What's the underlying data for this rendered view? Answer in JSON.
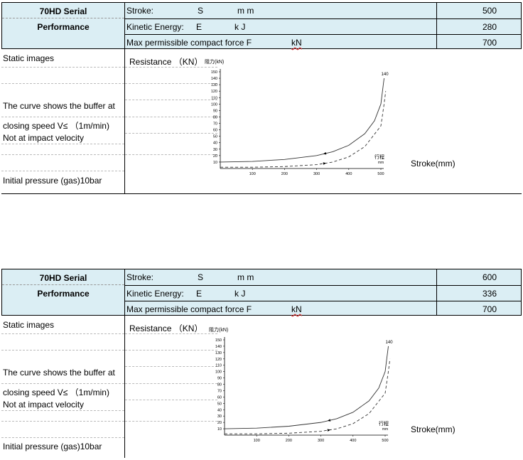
{
  "tables": [
    {
      "model": "70HD Serial",
      "performance": "Performance",
      "stroke_label": "Stroke:",
      "stroke_symbol": "S",
      "stroke_unit": "m m",
      "stroke_value": "500",
      "energy_label": "Kinetic Energy:",
      "energy_symbol": "E",
      "energy_unit": "k J",
      "energy_value": "280",
      "force_label": "Max permissible compact force F",
      "force_unit": "kN",
      "force_value": "700",
      "static_images": "Static images",
      "resistance_label": "Resistance （KN）",
      "curve_line1": "The curve shows the buffer at",
      "curve_line2": "closing speed V≤ （1m/min)",
      "curve_line3": "Not at impact velocity",
      "initial_pressure": "Initial pressure (gas)10bar",
      "stroke_axis_label": "Stroke(mm)"
    },
    {
      "model": "70HD Serial",
      "performance": "Performance",
      "stroke_label": "Stroke:",
      "stroke_symbol": "S",
      "stroke_unit": "m m",
      "stroke_value": "600",
      "energy_label": "Kinetic Energy:",
      "energy_symbol": "E",
      "energy_unit": "k J",
      "energy_value": "336",
      "force_label": "Max permissible compact force F",
      "force_unit": "kN",
      "force_value": "700",
      "static_images": "Static images",
      "resistance_label": "Resistance （KN）",
      "curve_line1": "The curve shows the buffer at",
      "curve_line2": "closing speed V≤ （1m/min)",
      "curve_line3": "Not at impact velocity",
      "initial_pressure": "Initial pressure (gas)10bar",
      "stroke_axis_label": "Stroke(mm)"
    }
  ],
  "chart_data": [
    {
      "type": "line",
      "ylabel": "阻力(kN)",
      "xlabel": "行程 mm",
      "yticks": [
        10,
        20,
        30,
        40,
        50,
        60,
        70,
        80,
        90,
        100,
        110,
        120,
        130,
        140,
        150
      ],
      "xticks": [
        100,
        200,
        300,
        400,
        500
      ],
      "ylim": [
        0,
        150
      ],
      "xlim": [
        0,
        500
      ],
      "peak_label": "140",
      "series": [
        {
          "style": "solid",
          "x": [
            0,
            100,
            200,
            300,
            350,
            400,
            450,
            480,
            500,
            510
          ],
          "y": [
            10,
            11,
            14,
            20,
            26,
            36,
            54,
            74,
            100,
            140
          ]
        },
        {
          "style": "dashed",
          "x": [
            0,
            100,
            200,
            300,
            350,
            400,
            450,
            500,
            510,
            515
          ],
          "y": [
            2,
            2,
            3,
            6,
            10,
            18,
            34,
            66,
            100,
            120
          ]
        }
      ]
    },
    {
      "type": "line",
      "ylabel": "阻力(kN)",
      "xlabel": "行程 mm",
      "yticks": [
        10,
        20,
        30,
        40,
        50,
        60,
        70,
        80,
        90,
        100,
        110,
        120,
        130,
        140,
        150
      ],
      "xticks": [
        100,
        200,
        300,
        400,
        500
      ],
      "ylim": [
        0,
        150
      ],
      "xlim": [
        0,
        500
      ],
      "peak_label": "140",
      "series": [
        {
          "style": "solid",
          "x": [
            0,
            100,
            200,
            300,
            350,
            400,
            450,
            480,
            500,
            510
          ],
          "y": [
            10,
            11,
            14,
            20,
            26,
            36,
            54,
            74,
            100,
            140
          ]
        },
        {
          "style": "dashed",
          "x": [
            0,
            100,
            200,
            300,
            350,
            400,
            450,
            500,
            510,
            515
          ],
          "y": [
            2,
            2,
            3,
            6,
            10,
            18,
            34,
            66,
            100,
            120
          ]
        }
      ]
    }
  ]
}
